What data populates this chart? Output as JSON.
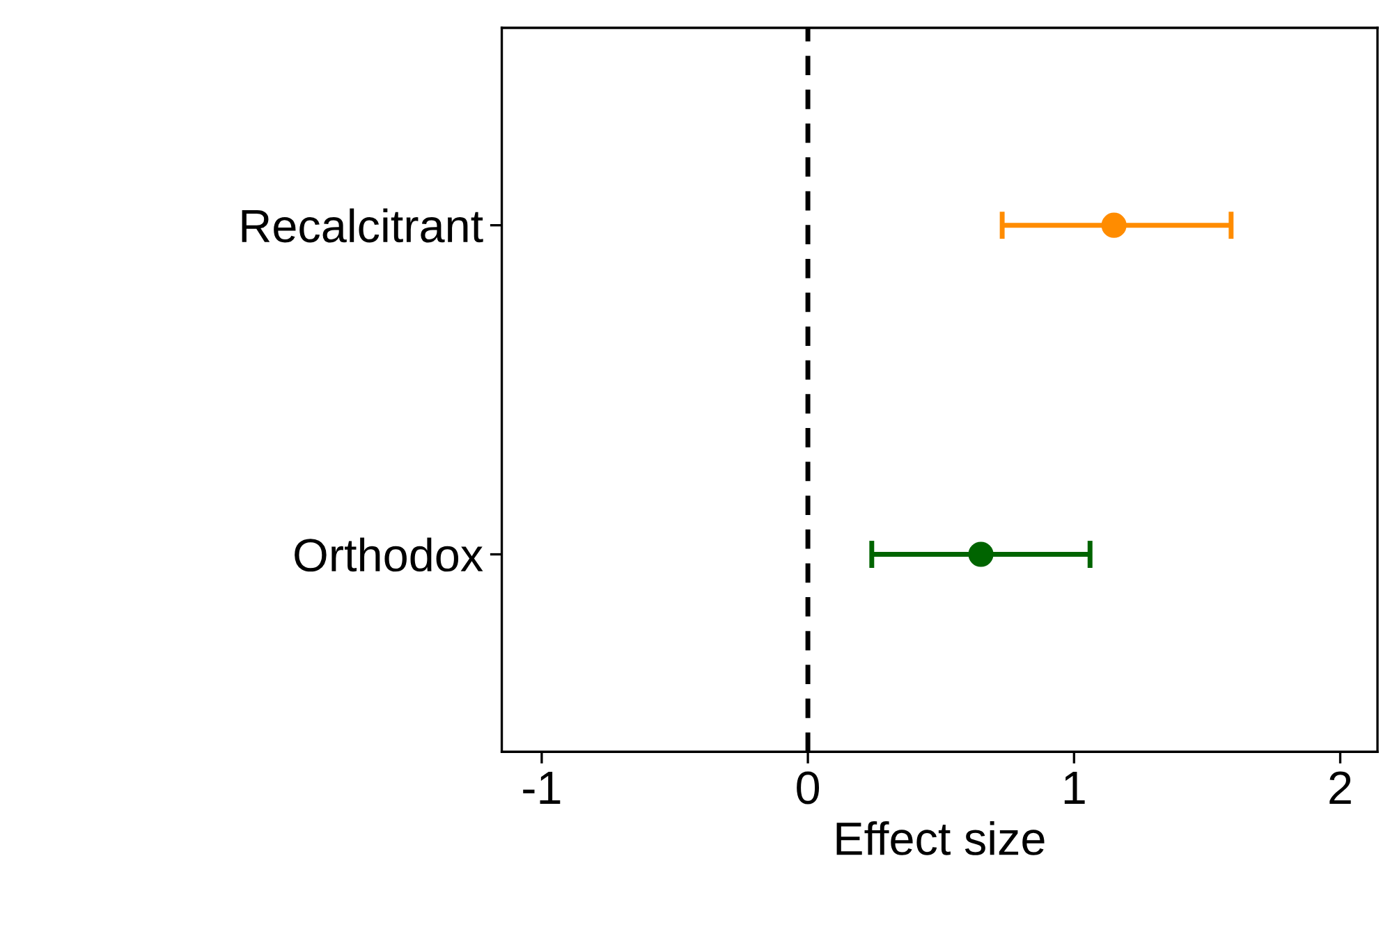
{
  "chart_data": {
    "type": "scatter",
    "orientation": "horizontal",
    "xlabel": "Effect size",
    "categories": [
      "Recalcitrant",
      "Orthodox"
    ],
    "values": [
      1.15,
      0.65
    ],
    "errors": [
      [
        0.73,
        1.59
      ],
      [
        0.24,
        1.06
      ]
    ],
    "colors": [
      "#ff8c00",
      "#006400"
    ],
    "marker": "circle",
    "xlim": [
      -1.15,
      2.14
    ],
    "xticks": [
      {
        "value": -1,
        "label": "-1"
      },
      0,
      1,
      2
    ],
    "ref_lines": [
      {
        "axis": "x",
        "value": 0,
        "color": "#000000",
        "line_style": "dashed"
      }
    ],
    "grid": false
  }
}
